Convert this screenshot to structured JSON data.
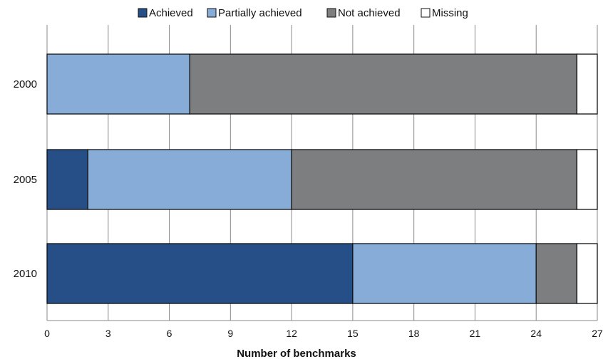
{
  "chart_data": {
    "type": "bar",
    "orientation": "horizontal",
    "stacked": true,
    "title": "",
    "xlabel": "Number of benchmarks",
    "ylabel": "",
    "xlim": [
      0,
      27
    ],
    "xticks": [
      0,
      3,
      6,
      9,
      12,
      15,
      18,
      21,
      24,
      27
    ],
    "grid": true,
    "legend_position": "top",
    "categories": [
      "2000",
      "2005",
      "2010"
    ],
    "series": [
      {
        "name": "Achieved",
        "color": "#274f87",
        "values": [
          0,
          2,
          15
        ]
      },
      {
        "name": "Partially achieved",
        "color": "#87acd8",
        "values": [
          7,
          10,
          9
        ]
      },
      {
        "name": "Not achieved",
        "color": "#7d7e80",
        "values": [
          19,
          14,
          2
        ]
      },
      {
        "name": "Missing",
        "color": "#ffffff",
        "values": [
          1,
          1,
          1
        ]
      }
    ]
  }
}
